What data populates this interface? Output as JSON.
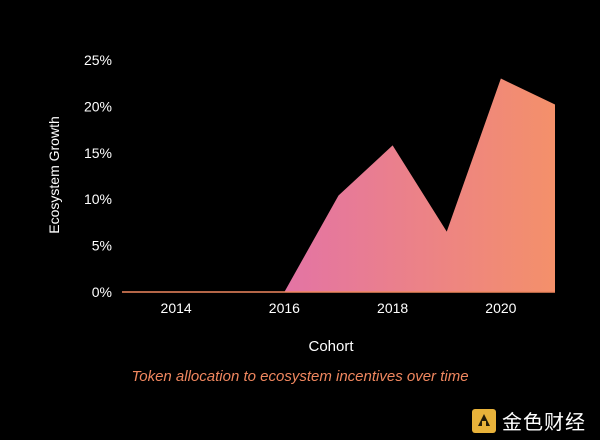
{
  "caption": "Token allocation to ecosystem incentives over time",
  "watermark": {
    "text": "金色财经",
    "logo_icon": "jinse-logo-icon",
    "logo_color": "#E8B23A"
  },
  "colors": {
    "background": "#000000",
    "text": "#ffffff",
    "caption": "#F0875F",
    "gradient_start": "#D963C8",
    "gradient_end": "#F4906A",
    "baseline": "#F0875F"
  },
  "chart_data": {
    "type": "area",
    "title": "",
    "xlabel": "Cohort",
    "ylabel": "Ecosystem Growth",
    "x": [
      2013,
      2014,
      2015,
      2016,
      2017,
      2018,
      2019,
      2020,
      2021
    ],
    "values": [
      0,
      0,
      0,
      0,
      10.4,
      15.8,
      6.5,
      23.0,
      20.2
    ],
    "xlim": [
      2013,
      2021
    ],
    "ylim": [
      0,
      25
    ],
    "x_ticks": [
      2014,
      2016,
      2018,
      2020
    ],
    "x_tick_labels": [
      "2014",
      "2016",
      "2018",
      "2020"
    ],
    "y_ticks": [
      0,
      5,
      10,
      15,
      20,
      25
    ],
    "y_tick_labels": [
      "0%",
      "5%",
      "10%",
      "15%",
      "20%",
      "25%"
    ],
    "grid": false,
    "legend": "none"
  }
}
